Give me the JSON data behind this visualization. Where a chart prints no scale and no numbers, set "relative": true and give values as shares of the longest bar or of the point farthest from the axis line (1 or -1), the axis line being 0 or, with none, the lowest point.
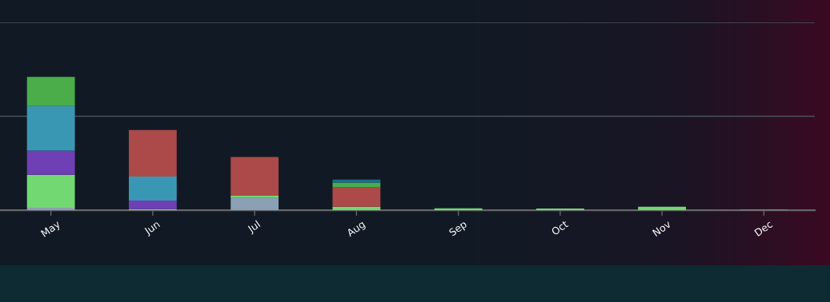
{
  "chart_data": {
    "type": "bar",
    "stacked": true,
    "relative": true,
    "ref_lines": [
      {
        "axis": "y",
        "value": 0.705,
        "color": "#4a535c"
      },
      {
        "axis": "y",
        "value": 1.41,
        "color": "#4a535c"
      }
    ],
    "categories": [
      "May",
      "Jun",
      "Jul",
      "Aug",
      "Sep",
      "Oct",
      "Nov",
      "Dec"
    ],
    "series": [
      {
        "color": "#8aa0b4",
        "values": [
          0.018,
          0,
          0.092,
          0,
          0,
          0,
          0,
          0.004
        ]
      },
      {
        "color": "#72d872",
        "values": [
          0.248,
          0.008,
          0.016,
          0.026,
          0.014,
          0.012,
          0.026,
          0
        ]
      },
      {
        "color": "#6f3fb5",
        "values": [
          0.182,
          0.064,
          0,
          0,
          0,
          0,
          0,
          0
        ]
      },
      {
        "color": "#3a97b3",
        "values": [
          0.334,
          0.18,
          0,
          0,
          0,
          0,
          0,
          0
        ]
      },
      {
        "color": "#ab4a48",
        "values": [
          0,
          0.35,
          0.292,
          0.146,
          0,
          0,
          0,
          0
        ]
      },
      {
        "color": "#4aad4a",
        "values": [
          0.218,
          0,
          0,
          0.036,
          0,
          0,
          0,
          0
        ]
      },
      {
        "color": "#1b6d8c",
        "values": [
          0,
          0,
          0,
          0.022,
          0,
          0,
          0,
          0
        ]
      }
    ]
  }
}
